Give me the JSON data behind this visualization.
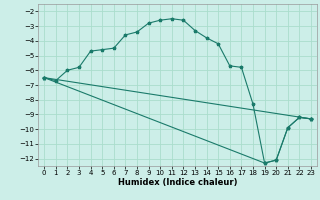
{
  "xlabel": "Humidex (Indice chaleur)",
  "bg_color": "#cceee8",
  "grid_color": "#aaddcc",
  "line_color": "#1a7a6a",
  "xlim": [
    -0.5,
    23.5
  ],
  "ylim": [
    -12.5,
    -1.5
  ],
  "yticks": [
    -12,
    -11,
    -10,
    -9,
    -8,
    -7,
    -6,
    -5,
    -4,
    -3,
    -2
  ],
  "xticks": [
    0,
    1,
    2,
    3,
    4,
    5,
    6,
    7,
    8,
    9,
    10,
    11,
    12,
    13,
    14,
    15,
    16,
    17,
    18,
    19,
    20,
    21,
    22,
    23
  ],
  "series1_x": [
    0,
    1,
    2,
    3,
    4,
    5,
    6,
    7,
    8,
    9,
    10,
    11,
    12,
    13,
    14,
    15,
    16,
    17,
    18,
    19,
    20,
    21,
    22,
    23
  ],
  "series1_y": [
    -6.5,
    -6.7,
    -6.0,
    -5.8,
    -4.7,
    -4.6,
    -4.5,
    -3.6,
    -3.4,
    -2.8,
    -2.6,
    -2.5,
    -2.6,
    -3.3,
    -3.8,
    -4.2,
    -5.7,
    -5.8,
    -8.3,
    -12.3,
    -12.1,
    -9.9,
    -9.2,
    -9.3
  ],
  "series2_x": [
    0,
    23
  ],
  "series2_y": [
    -6.5,
    -9.3
  ],
  "series3_x": [
    0,
    19,
    20,
    21,
    22,
    23
  ],
  "series3_y": [
    -6.5,
    -12.3,
    -12.1,
    -9.9,
    -9.2,
    -9.3
  ]
}
